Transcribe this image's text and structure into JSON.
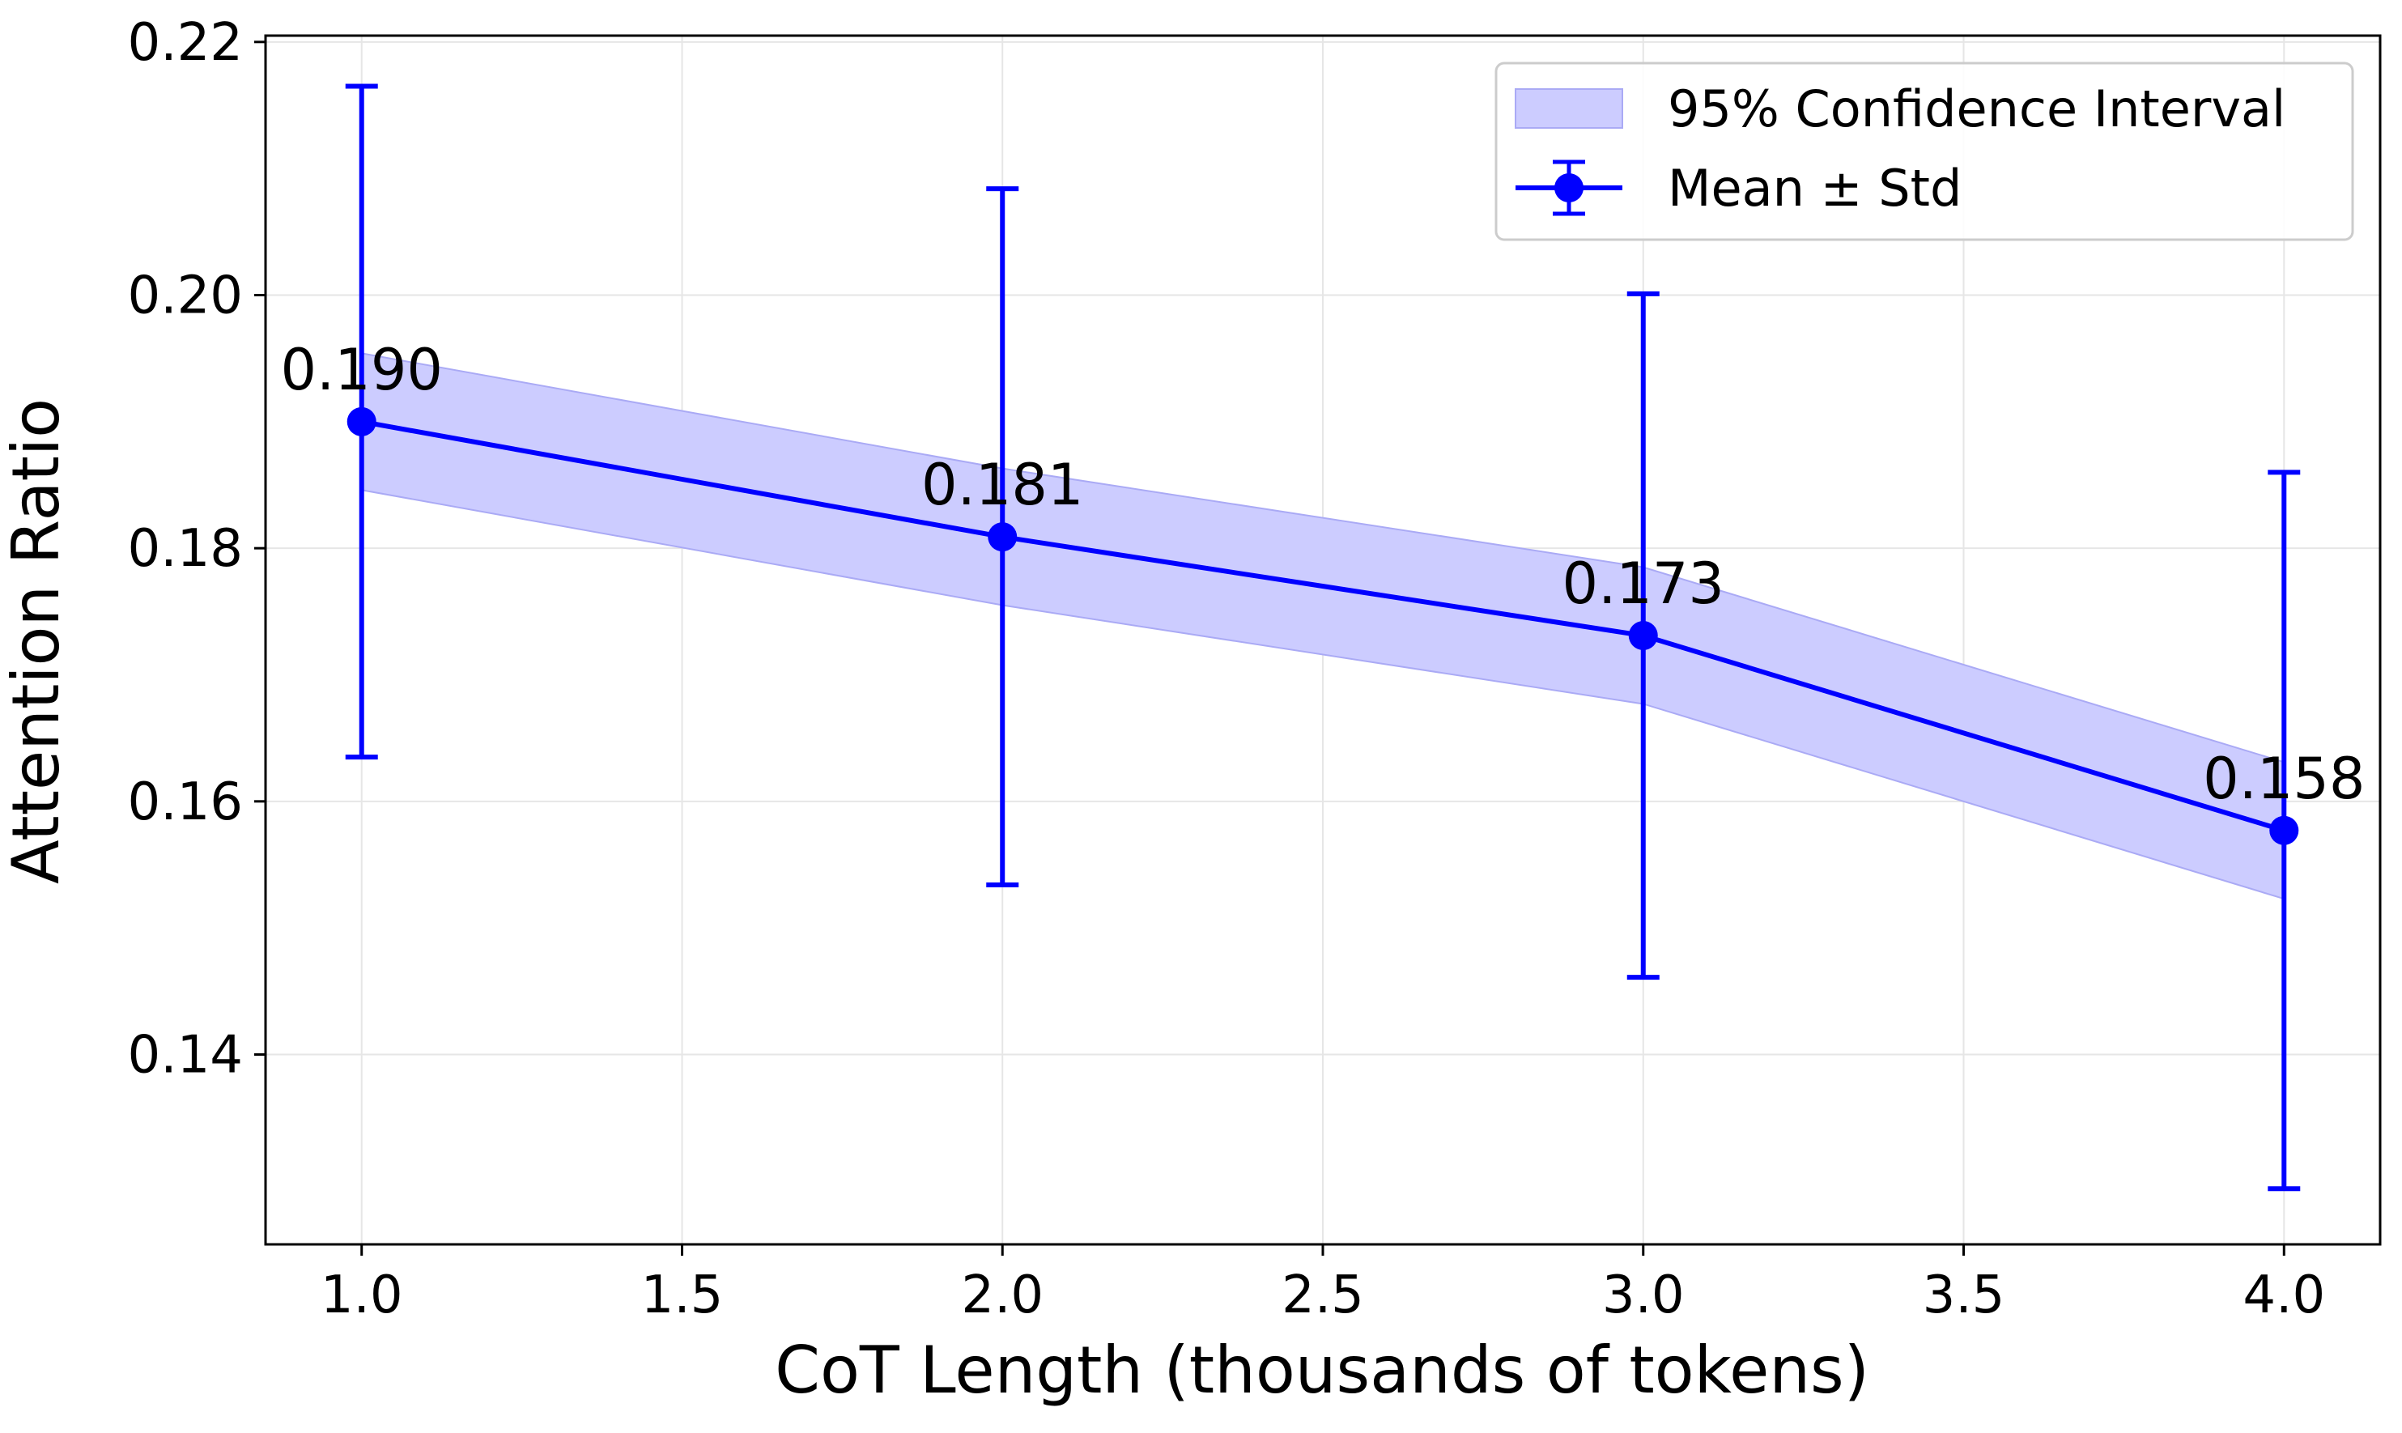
{
  "chart_data": {
    "type": "line",
    "xlabel": "CoT Length (thousands of tokens)",
    "ylabel": "Attention Ratio",
    "xlim": [
      0.85,
      4.15
    ],
    "ylim": [
      0.125,
      0.2205
    ],
    "x_ticks": [
      1.0,
      1.5,
      2.0,
      2.5,
      3.0,
      3.5,
      4.0
    ],
    "x_tick_labels": [
      "1.0",
      "1.5",
      "2.0",
      "2.5",
      "3.0",
      "3.5",
      "4.0"
    ],
    "y_ticks": [
      0.14,
      0.16,
      0.18,
      0.2,
      0.22
    ],
    "y_tick_labels": [
      "0.14",
      "0.16",
      "0.18",
      "0.20",
      "0.22"
    ],
    "grid": true,
    "colors": {
      "line": "#0000ff",
      "band_fill": "#ccccff",
      "band_edge": "#aaaaf5",
      "grid": "#e6e6e6"
    },
    "legend": {
      "position": "top-right",
      "entries": [
        {
          "label": "95% Confidence Interval",
          "kind": "band"
        },
        {
          "label": "Mean ± Std",
          "kind": "errorbar-line"
        }
      ]
    },
    "series": [
      {
        "name": "Mean ± Std",
        "x": [
          1.0,
          2.0,
          3.0,
          4.0
        ],
        "mean": [
          0.19,
          0.1809,
          0.1731,
          0.1577
        ],
        "std": [
          0.0265,
          0.0275,
          0.027,
          0.0283
        ],
        "labels": [
          "0.190",
          "0.181",
          "0.173",
          "0.158"
        ]
      },
      {
        "name": "95% Confidence Interval",
        "x": [
          1.0,
          2.0,
          3.0,
          4.0
        ],
        "lower": [
          0.1846,
          0.1755,
          0.1677,
          0.1523
        ],
        "upper": [
          0.1954,
          0.1863,
          0.1785,
          0.1631
        ]
      }
    ]
  }
}
